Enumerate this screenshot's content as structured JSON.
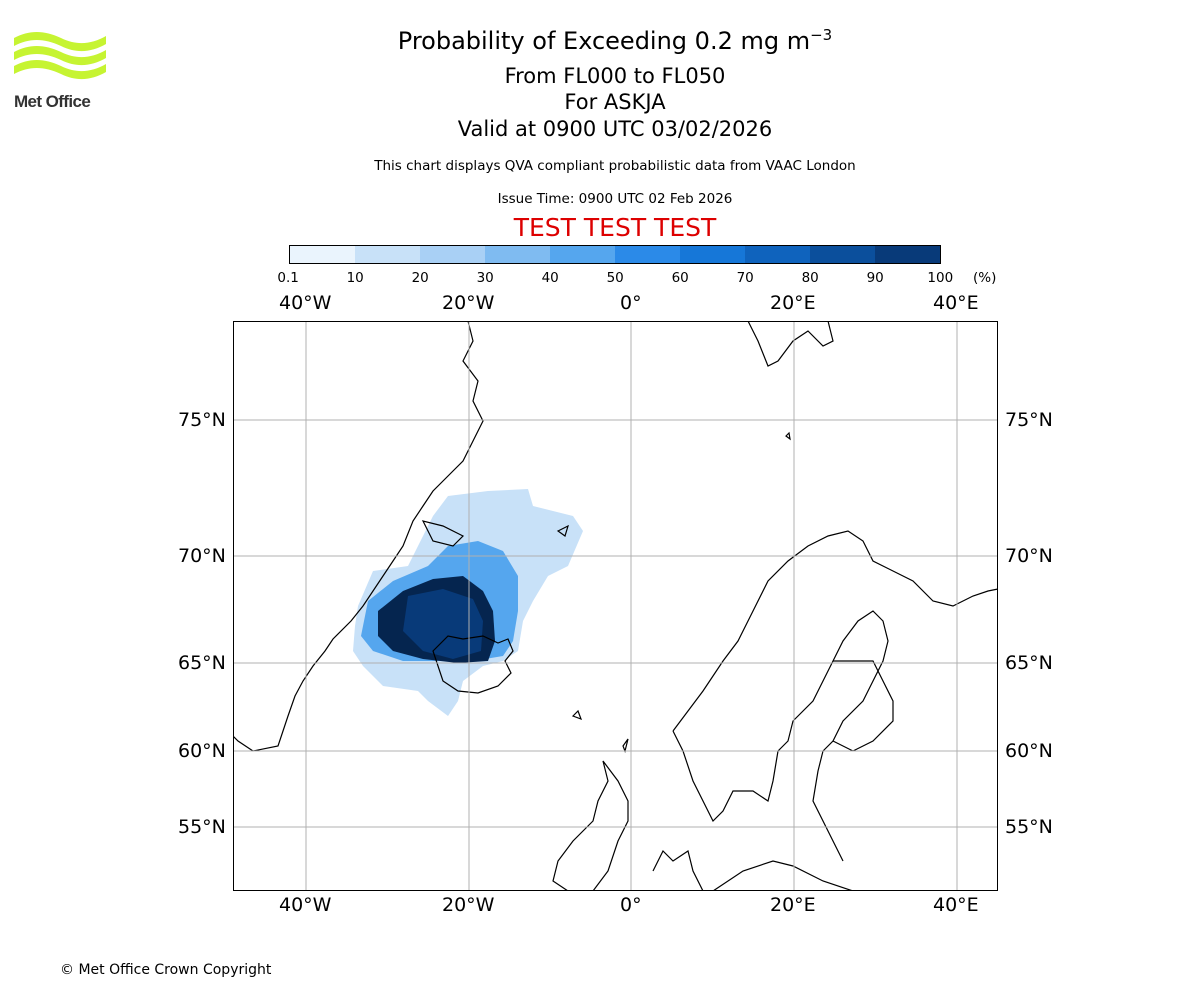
{
  "header": {
    "title_prefix": "Probability of Exceeding 0.2 mg m",
    "title_exponent": "−3",
    "flight_levels": "From FL000 to FL050",
    "volcano": "For ASKJA",
    "valid_time": "Valid at 0900 UTC 03/02/2026",
    "disclaimer": "This chart displays QVA compliant probabilistic data from VAAC London",
    "issue_time": "Issue Time: 0900 UTC 02 Feb 2026",
    "test_banner": "TEST TEST TEST"
  },
  "logo": {
    "text": "Met Office",
    "color": "#c6f432"
  },
  "colorbar": {
    "ticks": [
      "0.1",
      "10",
      "20",
      "30",
      "40",
      "50",
      "60",
      "70",
      "80",
      "90",
      "100"
    ],
    "unit": "(%)",
    "colors": [
      "#eaf4fd",
      "#c8e1f8",
      "#a9d0f5",
      "#7fbbf1",
      "#55a6ee",
      "#2b8ae8",
      "#1677d8",
      "#0f63bd",
      "#0b4f9c",
      "#083a79",
      "#05254f"
    ]
  },
  "map": {
    "lon_labels": [
      "40°W",
      "20°W",
      "0°",
      "20°E",
      "40°E"
    ],
    "lat_labels": [
      "75°N",
      "70°N",
      "65°N",
      "60°N",
      "55°N"
    ],
    "grid_color": "#b0b0b0",
    "plume_dark_color": "#05254f",
    "plume_light_color": "#a9d0f5"
  },
  "footer": {
    "copyright": "© Met Office Crown Copyright"
  }
}
